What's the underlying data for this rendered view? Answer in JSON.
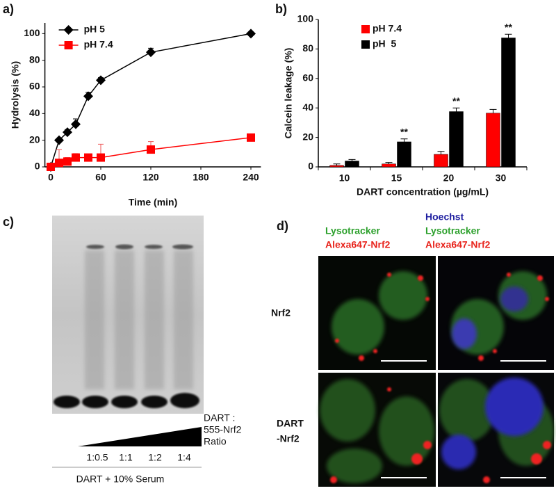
{
  "chart_data": [
    {
      "type": "line",
      "x_label": "Time (min)",
      "y_label": "Hydrolysis (%)",
      "x": [
        0,
        10,
        20,
        30,
        45,
        60,
        120,
        240
      ],
      "series": [
        {
          "name": "pH 5",
          "color": "#000000",
          "marker": "diamond",
          "values": [
            0,
            20,
            26,
            32,
            53,
            65,
            86,
            100
          ],
          "errors": [
            0,
            1,
            2,
            4,
            3,
            2,
            3,
            0
          ]
        },
        {
          "name": "pH 7.4",
          "color": "#ff0000",
          "marker": "square",
          "values": [
            0,
            3,
            4,
            7,
            7,
            7,
            13,
            22
          ],
          "errors": [
            0,
            10,
            3,
            3,
            2,
            10,
            6,
            0
          ]
        }
      ],
      "xlim": [
        -7,
        252
      ],
      "xticks": [
        0,
        60,
        120,
        180,
        240
      ],
      "ylim": [
        0,
        108
      ],
      "yticks": [
        0,
        20,
        40,
        60,
        80,
        100
      ],
      "legend": "upper left"
    },
    {
      "type": "bar",
      "x_label": "DART concentration (µg/mL)",
      "y_label": "Calcein leakage (%)",
      "categories": [
        "10",
        "15",
        "20",
        "30"
      ],
      "series": [
        {
          "name": "pH 7.4",
          "color": "#ff0000",
          "values": [
            1,
            2,
            8.5,
            36.5
          ],
          "errors": [
            1,
            1,
            2,
            2.5
          ]
        },
        {
          "name": "pH  5",
          "color": "#000000",
          "values": [
            4,
            17,
            37.5,
            87.5
          ],
          "errors": [
            1,
            2,
            2.5,
            2.5
          ],
          "annotations": [
            null,
            "**",
            "**",
            "**"
          ]
        }
      ],
      "ylim": [
        0,
        100
      ],
      "yticks": [
        0,
        20,
        40,
        60,
        80,
        100
      ],
      "legend": "upper left"
    }
  ],
  "panel_labels": [
    "a)",
    "b)",
    "c)",
    "d)"
  ],
  "gel": {
    "ratio_title": [
      "DART :",
      "555-Nrf2",
      "Ratio"
    ],
    "ratios": [
      "1:0.5",
      "1:1",
      "1:2",
      "1:4"
    ],
    "condition": "DART + 10% Serum"
  },
  "microscopy": {
    "column_labels": [
      [
        "Lysotracker",
        "Alexa647-Nrf2"
      ],
      [
        "Hoechst",
        "Lysotracker",
        "Alexa647-Nrf2"
      ]
    ],
    "row_labels": [
      [
        "Nrf2"
      ],
      [
        "DART",
        "-Nrf2"
      ]
    ]
  }
}
